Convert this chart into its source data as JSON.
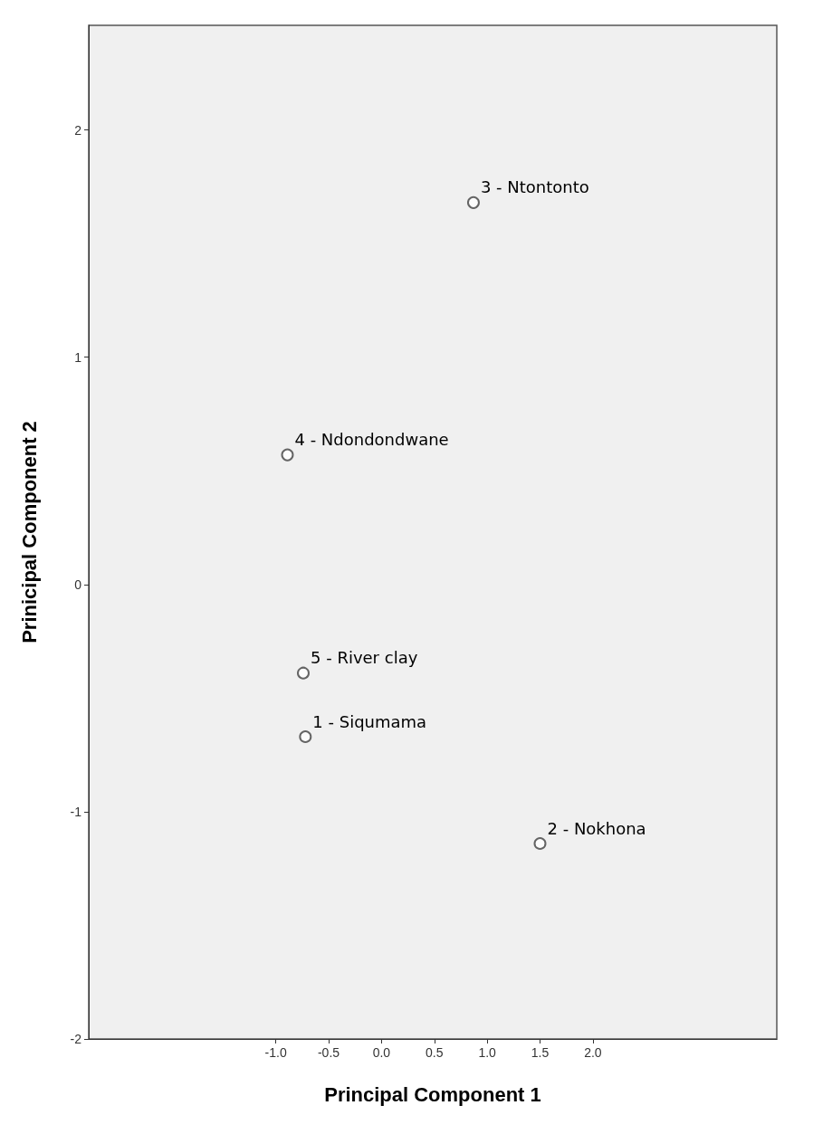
{
  "chart_data": {
    "type": "scatter",
    "xlabel": "Principal Component 1",
    "ylabel": "Prinicipal Component 2",
    "x": [
      -0.72,
      1.5,
      0.87,
      -0.89,
      -0.74
    ],
    "values": [
      -0.67,
      -1.14,
      1.68,
      0.57,
      -0.39
    ],
    "color": "#404040",
    "marker": "circle",
    "grid": false,
    "xlim": [
      -2.77,
      3.74
    ],
    "xticks": [
      {
        "value": -1,
        "label": "-1.0"
      },
      {
        "value": -0.5,
        "label": "-0.5"
      },
      {
        "value": 0,
        "label": "0.0"
      },
      {
        "value": 0.5,
        "label": "0.5"
      },
      {
        "value": 1,
        "label": "1.0"
      },
      {
        "value": 1.5,
        "label": "1.5"
      },
      {
        "value": 2,
        "label": "2.0"
      }
    ],
    "ylim": [
      -2,
      2.46
    ],
    "yticks": [
      -2,
      -1,
      0,
      1,
      2
    ],
    "annotations": [
      {
        "text": "1 - Siqumama",
        "x": -0.72,
        "y": -0.67
      },
      {
        "text": "2 - Nokhona",
        "x": 1.5,
        "y": -1.14
      },
      {
        "text": "3 - Ntontonto",
        "x": 0.87,
        "y": 1.68
      },
      {
        "text": "4 - Ndondondwane",
        "x": -0.89,
        "y": 0.57
      },
      {
        "text": "5 - River clay",
        "x": -0.74,
        "y": -0.39
      }
    ]
  }
}
